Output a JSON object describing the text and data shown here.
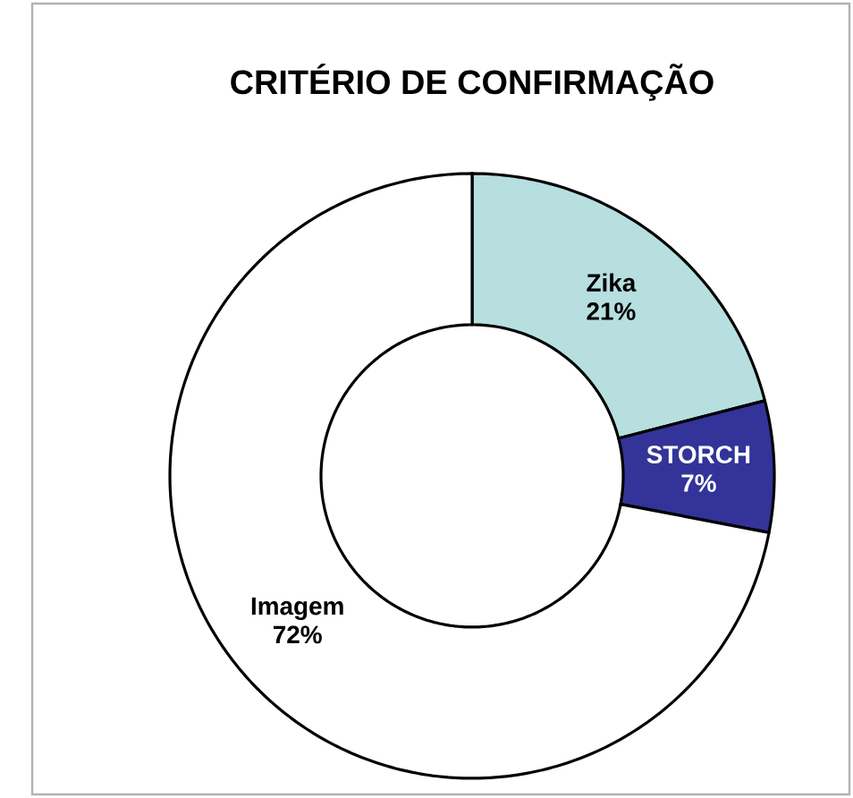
{
  "chart_data": {
    "type": "donut",
    "title": "CRITÉRIO DE CONFIRMAÇÃO",
    "categories": [
      "Zika",
      "STORCH",
      "Imagem"
    ],
    "values": [
      21,
      7,
      72
    ],
    "value_labels": [
      "21%",
      "7%",
      "72%"
    ],
    "colors": [
      "#b7dfe0",
      "#333399",
      "#ffffff"
    ]
  }
}
